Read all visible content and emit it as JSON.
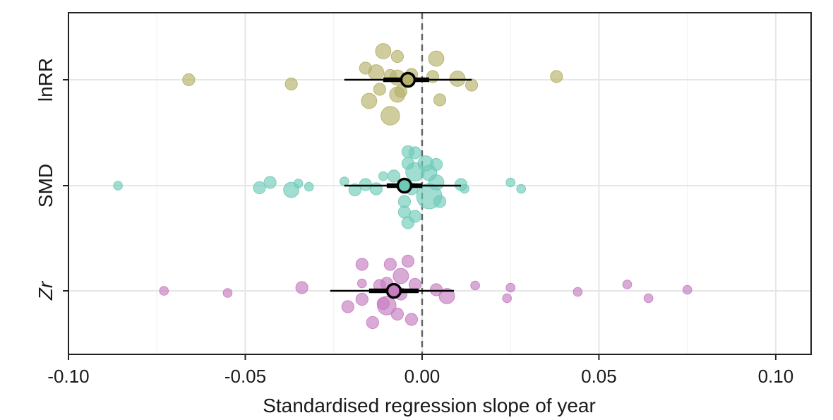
{
  "chart_data": {
    "type": "scatter",
    "subtype": "orchard-plot",
    "xlabel": "Standardised regression slope of year",
    "ylabel": "",
    "xlim": [
      -0.1,
      0.11
    ],
    "x_ticks": [
      -0.1,
      -0.05,
      0.0,
      0.05,
      0.1
    ],
    "x_tick_labels": [
      "-0.10",
      "-0.05",
      "0.00",
      "0.05",
      "0.10"
    ],
    "reference_line_x": 0,
    "grid": true,
    "colors": {
      "lnRR": "#B5B06A",
      "SMD": "#6FCBB8",
      "Zr": "#C57CC0",
      "summary": "#000000"
    },
    "series": [
      {
        "name": "lnRR",
        "label": "lnRR",
        "italic": false,
        "estimate": -0.004,
        "ci": [
          -0.011,
          0.002
        ],
        "pi": [
          -0.022,
          0.014
        ],
        "points": [
          {
            "x": -0.066,
            "j": 0.0,
            "w": 2
          },
          {
            "x": -0.037,
            "j": -0.04,
            "w": 2
          },
          {
            "x": -0.011,
            "j": 0.27,
            "w": 3
          },
          {
            "x": -0.007,
            "j": 0.22,
            "w": 2
          },
          {
            "x": 0.004,
            "j": 0.2,
            "w": 3
          },
          {
            "x": -0.016,
            "j": 0.11,
            "w": 2
          },
          {
            "x": -0.013,
            "j": 0.07,
            "w": 3
          },
          {
            "x": -0.009,
            "j": 0.04,
            "w": 2
          },
          {
            "x": -0.007,
            "j": 0.02,
            "w": 3
          },
          {
            "x": -0.003,
            "j": 0.05,
            "w": 2
          },
          {
            "x": 0.003,
            "j": 0.03,
            "w": 2
          },
          {
            "x": 0.01,
            "j": 0.01,
            "w": 3
          },
          {
            "x": 0.014,
            "j": -0.05,
            "w": 2
          },
          {
            "x": -0.012,
            "j": -0.09,
            "w": 2
          },
          {
            "x": -0.007,
            "j": -0.14,
            "w": 3
          },
          {
            "x": -0.006,
            "j": -0.11,
            "w": 2
          },
          {
            "x": -0.015,
            "j": -0.2,
            "w": 3
          },
          {
            "x": 0.005,
            "j": -0.19,
            "w": 2
          },
          {
            "x": -0.009,
            "j": -0.34,
            "w": 4
          },
          {
            "x": 0.038,
            "j": 0.03,
            "w": 2
          }
        ]
      },
      {
        "name": "SMD",
        "label": "SMD",
        "italic": false,
        "estimate": -0.005,
        "ci": [
          -0.01,
          0.0
        ],
        "pi": [
          -0.022,
          0.011
        ],
        "points": [
          {
            "x": -0.086,
            "j": 0.0,
            "w": 1
          },
          {
            "x": -0.046,
            "j": -0.02,
            "w": 2
          },
          {
            "x": -0.043,
            "j": 0.03,
            "w": 2
          },
          {
            "x": -0.037,
            "j": -0.04,
            "w": 3
          },
          {
            "x": -0.035,
            "j": 0.02,
            "w": 1
          },
          {
            "x": -0.032,
            "j": -0.01,
            "w": 1
          },
          {
            "x": -0.022,
            "j": 0.04,
            "w": 1
          },
          {
            "x": -0.019,
            "j": -0.04,
            "w": 2
          },
          {
            "x": -0.016,
            "j": 0.01,
            "w": 2
          },
          {
            "x": -0.013,
            "j": -0.03,
            "w": 2
          },
          {
            "x": -0.011,
            "j": 0.09,
            "w": 1
          },
          {
            "x": -0.008,
            "j": 0.09,
            "w": 2
          },
          {
            "x": -0.004,
            "j": 0.32,
            "w": 2
          },
          {
            "x": -0.002,
            "j": 0.31,
            "w": 2
          },
          {
            "x": -0.004,
            "j": 0.21,
            "w": 2
          },
          {
            "x": -0.002,
            "j": 0.13,
            "w": 4
          },
          {
            "x": 0.001,
            "j": 0.21,
            "w": 3
          },
          {
            "x": 0.004,
            "j": 0.2,
            "w": 2
          },
          {
            "x": 0.002,
            "j": 0.12,
            "w": 3
          },
          {
            "x": 0.004,
            "j": 0.03,
            "w": 3
          },
          {
            "x": -0.003,
            "j": -0.03,
            "w": 2
          },
          {
            "x": 0.002,
            "j": -0.1,
            "w": 6
          },
          {
            "x": 0.005,
            "j": -0.15,
            "w": 2
          },
          {
            "x": -0.005,
            "j": -0.15,
            "w": 2
          },
          {
            "x": -0.005,
            "j": -0.25,
            "w": 2
          },
          {
            "x": -0.004,
            "j": -0.35,
            "w": 2
          },
          {
            "x": -0.002,
            "j": -0.29,
            "w": 2
          },
          {
            "x": 0.011,
            "j": 0.01,
            "w": 2
          },
          {
            "x": 0.012,
            "j": -0.03,
            "w": 1
          },
          {
            "x": 0.025,
            "j": 0.03,
            "w": 1
          },
          {
            "x": 0.028,
            "j": -0.03,
            "w": 1
          }
        ]
      },
      {
        "name": "Zr",
        "label": "Zr",
        "italic": true,
        "estimate": -0.008,
        "ci": [
          -0.015,
          -0.001
        ],
        "pi": [
          -0.026,
          0.009
        ],
        "points": [
          {
            "x": -0.073,
            "j": 0.0,
            "w": 1
          },
          {
            "x": -0.055,
            "j": -0.02,
            "w": 1
          },
          {
            "x": -0.034,
            "j": 0.03,
            "w": 2
          },
          {
            "x": -0.017,
            "j": 0.25,
            "w": 2
          },
          {
            "x": -0.009,
            "j": 0.25,
            "w": 2
          },
          {
            "x": -0.004,
            "j": 0.28,
            "w": 2
          },
          {
            "x": -0.006,
            "j": 0.14,
            "w": 3
          },
          {
            "x": -0.017,
            "j": 0.07,
            "w": 1
          },
          {
            "x": -0.012,
            "j": 0.05,
            "w": 2
          },
          {
            "x": -0.01,
            "j": 0.07,
            "w": 2
          },
          {
            "x": -0.006,
            "j": -0.03,
            "w": 2
          },
          {
            "x": -0.002,
            "j": 0.06,
            "w": 2
          },
          {
            "x": 0.004,
            "j": 0.01,
            "w": 2
          },
          {
            "x": 0.007,
            "j": -0.05,
            "w": 3
          },
          {
            "x": -0.017,
            "j": -0.08,
            "w": 2
          },
          {
            "x": -0.021,
            "j": -0.15,
            "w": 2
          },
          {
            "x": -0.011,
            "j": -0.12,
            "w": 2
          },
          {
            "x": -0.01,
            "j": -0.14,
            "w": 4
          },
          {
            "x": -0.007,
            "j": -0.22,
            "w": 2
          },
          {
            "x": -0.014,
            "j": -0.3,
            "w": 2
          },
          {
            "x": -0.003,
            "j": -0.27,
            "w": 2
          },
          {
            "x": 0.015,
            "j": 0.05,
            "w": 1
          },
          {
            "x": 0.025,
            "j": 0.03,
            "w": 1
          },
          {
            "x": 0.024,
            "j": -0.07,
            "w": 1
          },
          {
            "x": 0.044,
            "j": -0.01,
            "w": 1
          },
          {
            "x": 0.058,
            "j": 0.06,
            "w": 1
          },
          {
            "x": 0.064,
            "j": -0.07,
            "w": 1
          },
          {
            "x": 0.075,
            "j": 0.01,
            "w": 1
          }
        ]
      }
    ]
  }
}
